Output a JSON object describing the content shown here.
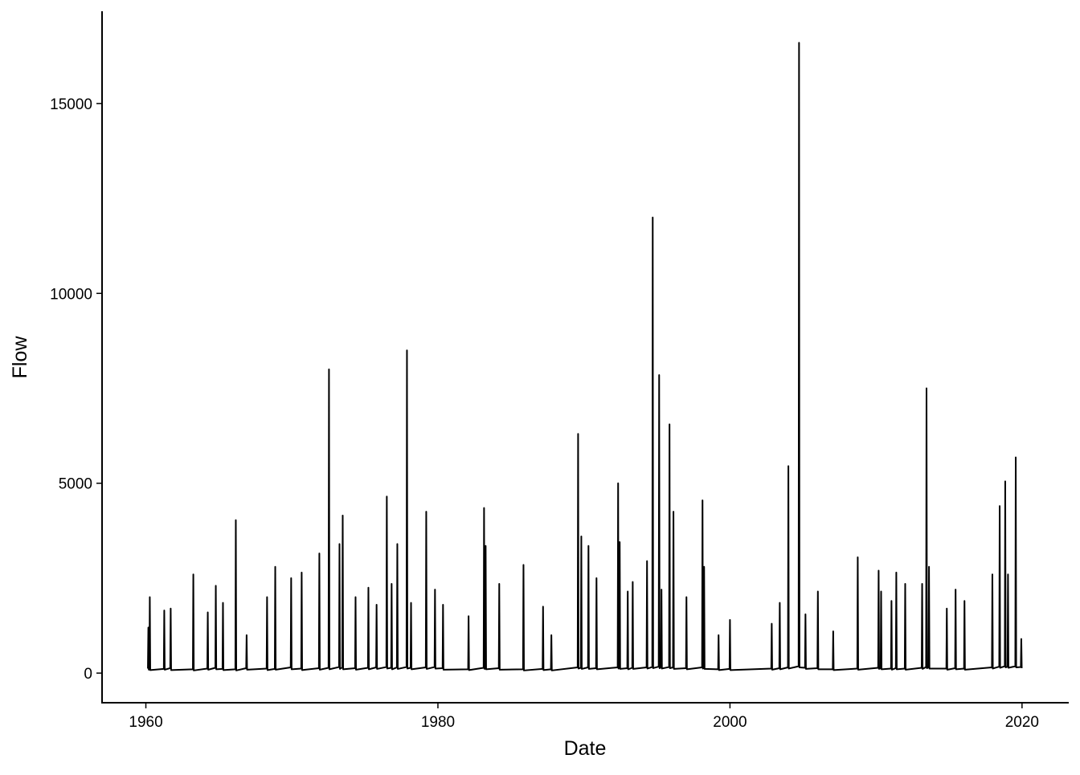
{
  "chart_data": {
    "type": "line",
    "x_label": "Date",
    "y_label": "Flow",
    "x": [
      1960.14,
      1960.17,
      1960.2,
      1960.24,
      1960.27,
      1960.3,
      1961.23,
      1961.26,
      1961.29,
      1961.67,
      1961.7,
      1961.73,
      1963.22,
      1963.25,
      1963.28,
      1964.21,
      1964.24,
      1964.27,
      1964.76,
      1964.79,
      1964.82,
      1965.25,
      1965.28,
      1965.31,
      1966.13,
      1966.16,
      1966.19,
      1966.87,
      1966.9,
      1966.93,
      1968.27,
      1968.3,
      1968.33,
      1968.83,
      1968.86,
      1968.89,
      1969.92,
      1969.95,
      1969.98,
      1970.64,
      1970.67,
      1970.7,
      1971.85,
      1971.88,
      1971.91,
      1972.51,
      1972.54,
      1972.57,
      1973.23,
      1973.26,
      1973.29,
      1973.45,
      1973.48,
      1973.51,
      1974.33,
      1974.36,
      1974.39,
      1975.21,
      1975.24,
      1975.27,
      1975.77,
      1975.8,
      1975.83,
      1976.47,
      1976.5,
      1976.53,
      1976.8,
      1976.83,
      1976.86,
      1977.19,
      1977.22,
      1977.25,
      1977.85,
      1977.88,
      1977.91,
      1978.13,
      1978.16,
      1978.19,
      1979.17,
      1979.2,
      1979.23,
      1979.77,
      1979.8,
      1979.83,
      1980.32,
      1980.35,
      1980.38,
      1982.07,
      1982.1,
      1982.13,
      1983.13,
      1983.16,
      1983.19,
      1983.24,
      1983.27,
      1983.3,
      1984.17,
      1984.2,
      1984.23,
      1985.83,
      1985.86,
      1985.89,
      1987.17,
      1987.2,
      1987.23,
      1987.74,
      1987.77,
      1987.8,
      1989.57,
      1989.6,
      1989.63,
      1989.79,
      1989.82,
      1989.85,
      1990.28,
      1990.31,
      1990.34,
      1990.83,
      1990.86,
      1990.89,
      1992.31,
      1992.34,
      1992.37,
      1992.42,
      1992.45,
      1992.48,
      1992.97,
      1993.0,
      1993.03,
      1993.31,
      1993.34,
      1993.37,
      1994.29,
      1994.32,
      1994.35,
      1994.68,
      1994.71,
      1994.74,
      1995.12,
      1995.15,
      1995.18,
      1995.28,
      1995.31,
      1995.34,
      1995.83,
      1995.86,
      1995.89,
      1996.1,
      1996.13,
      1996.16,
      1996.99,
      1997.02,
      1997.05,
      1998.09,
      1998.12,
      1998.15,
      1998.2,
      1998.23,
      1998.26,
      1999.19,
      1999.22,
      1999.25,
      1999.97,
      2000.0,
      2000.03,
      2002.83,
      2002.86,
      2002.89,
      2003.38,
      2003.41,
      2003.44,
      2003.97,
      2004.0,
      2004.03,
      2004.7,
      2004.73,
      2004.76,
      2005.14,
      2005.17,
      2005.2,
      2005.99,
      2006.02,
      2006.05,
      2007.04,
      2007.07,
      2007.1,
      2008.72,
      2008.75,
      2008.78,
      2010.15,
      2010.18,
      2010.21,
      2010.32,
      2010.35,
      2010.38,
      2011.03,
      2011.06,
      2011.09,
      2011.36,
      2011.39,
      2011.42,
      2011.97,
      2012.0,
      2012.03,
      2013.13,
      2013.16,
      2013.19,
      2013.43,
      2013.46,
      2013.49,
      2013.6,
      2013.63,
      2013.66,
      2014.82,
      2014.85,
      2014.88,
      2015.42,
      2015.45,
      2015.48,
      2016.03,
      2016.06,
      2016.09,
      2017.94,
      2017.97,
      2018.0,
      2018.44,
      2018.47,
      2018.5,
      2018.82,
      2018.85,
      2018.88,
      2019.01,
      2019.04,
      2019.07,
      2019.54,
      2019.57,
      2019.6,
      2019.92,
      2019.95,
      2019.98
    ],
    "values": [
      120,
      1200,
      90,
      100,
      2000,
      80,
      110,
      1650,
      90,
      130,
      1700,
      80,
      100,
      2600,
      70,
      120,
      1600,
      90,
      140,
      2300,
      100,
      110,
      1850,
      80,
      100,
      4030,
      70,
      130,
      1000,
      90,
      120,
      2000,
      80,
      110,
      2800,
      90,
      150,
      2500,
      100,
      120,
      2650,
      80,
      130,
      3150,
      90,
      140,
      8000,
      100,
      160,
      3400,
      110,
      150,
      4150,
      100,
      130,
      2000,
      90,
      140,
      2250,
      100,
      150,
      1800,
      110,
      160,
      4650,
      120,
      140,
      2350,
      100,
      150,
      3400,
      110,
      160,
      8500,
      120,
      140,
      1850,
      100,
      150,
      4250,
      110,
      160,
      2200,
      120,
      130,
      1800,
      90,
      100,
      1500,
      80,
      140,
      4350,
      110,
      120,
      3350,
      100,
      130,
      2350,
      90,
      100,
      2850,
      70,
      110,
      1750,
      80,
      100,
      1000,
      70,
      150,
      6300,
      120,
      140,
      3600,
      110,
      150,
      3350,
      110,
      130,
      2500,
      100,
      150,
      5000,
      120,
      140,
      3450,
      110,
      130,
      2150,
      100,
      140,
      2400,
      110,
      150,
      2950,
      120,
      160,
      12000,
      130,
      170,
      7850,
      130,
      150,
      2200,
      120,
      160,
      6550,
      130,
      150,
      4250,
      110,
      130,
      2000,
      100,
      150,
      4550,
      120,
      140,
      2800,
      110,
      100,
      1000,
      80,
      110,
      1400,
      80,
      120,
      1300,
      90,
      130,
      1850,
      100,
      150,
      5450,
      120,
      180,
      16600,
      150,
      140,
      1550,
      110,
      130,
      2150,
      100,
      100,
      1100,
      80,
      120,
      3050,
      90,
      140,
      2700,
      110,
      130,
      2150,
      100,
      120,
      1900,
      90,
      130,
      2650,
      100,
      120,
      2350,
      90,
      140,
      2350,
      110,
      160,
      7500,
      130,
      150,
      2800,
      120,
      120,
      1700,
      90,
      130,
      2200,
      100,
      120,
      1900,
      90,
      150,
      2600,
      120,
      170,
      4400,
      140,
      180,
      5050,
      150,
      170,
      2600,
      140,
      180,
      5680,
      150,
      160,
      900,
      130
    ],
    "color": "#000000",
    "xlim": [
      1957.0,
      2023.2
    ],
    "xticks": [
      1960,
      1980,
      2000,
      2020
    ],
    "ylim": [
      -780,
      17430
    ],
    "yticks": [
      0,
      5000,
      10000,
      15000
    ]
  }
}
